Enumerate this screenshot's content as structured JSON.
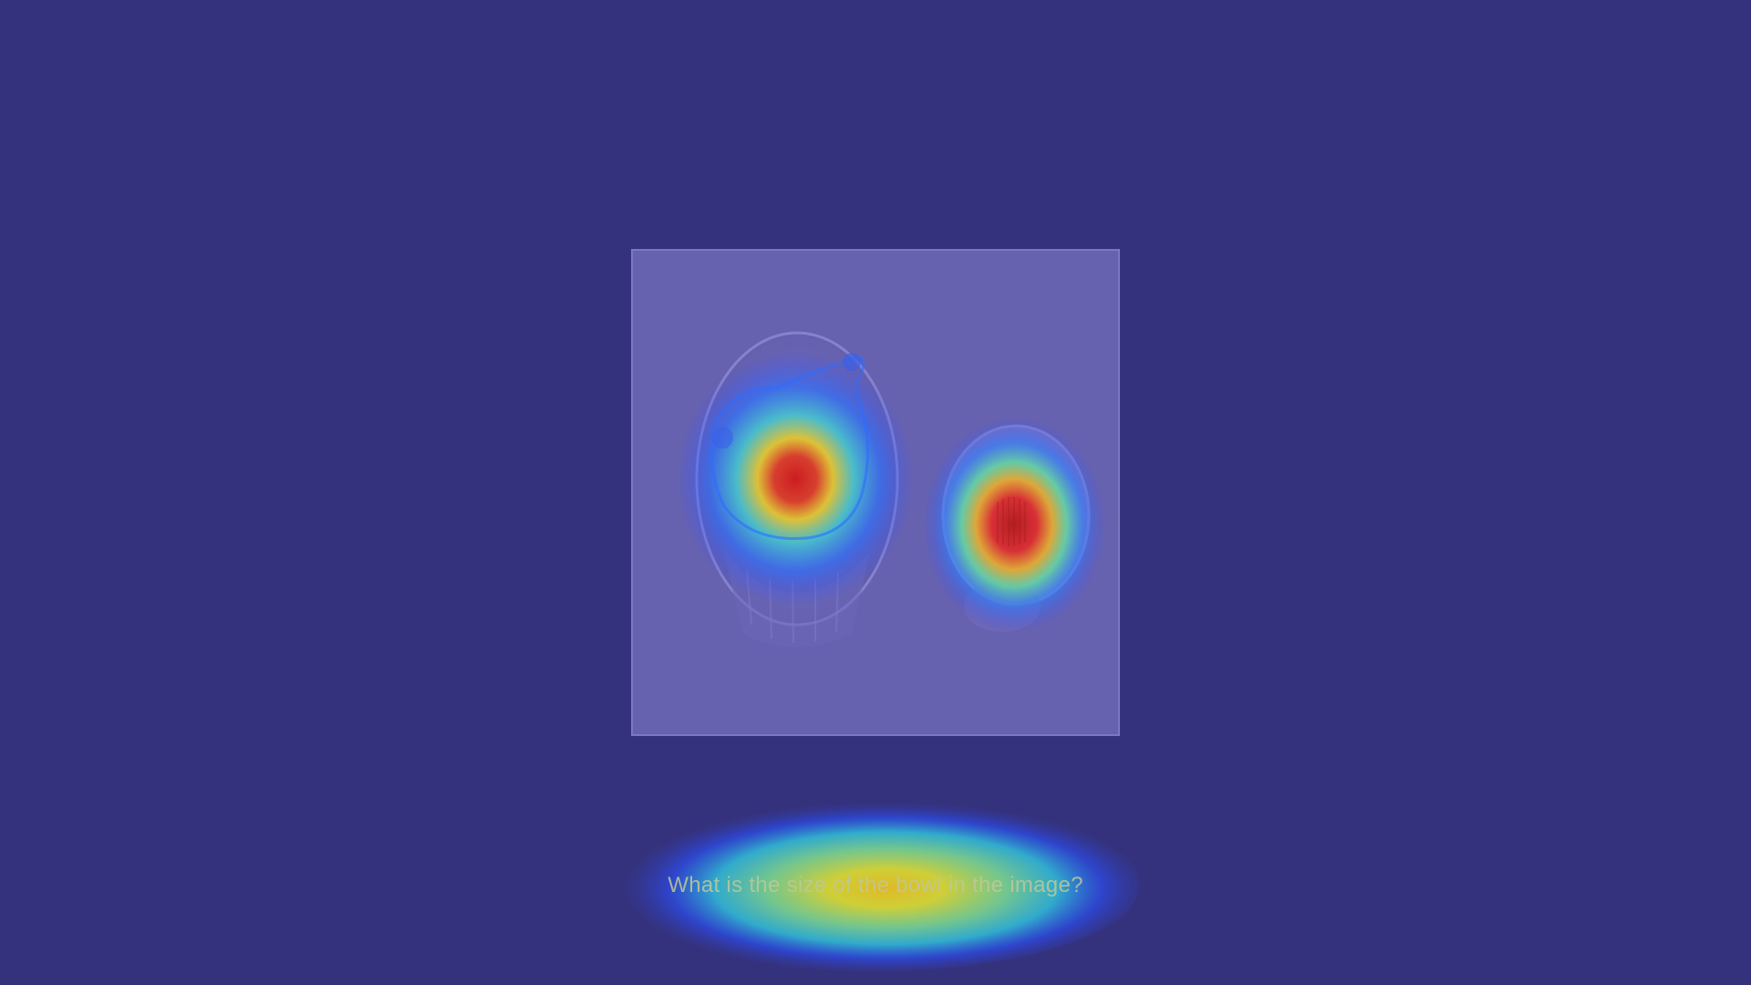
{
  "question": {
    "text": "What is the size of the bowl in the image?"
  },
  "image": {
    "subject": "food-bowl-and-egg-photo",
    "overlay": "attention-heatmap"
  },
  "colors": {
    "background": "#34327c",
    "photo_tint": "#6662b0",
    "heat_high": "#e02020",
    "heat_mid": "#f0e020",
    "heat_low": "#20c0e0",
    "heat_base": "#2040ff"
  }
}
